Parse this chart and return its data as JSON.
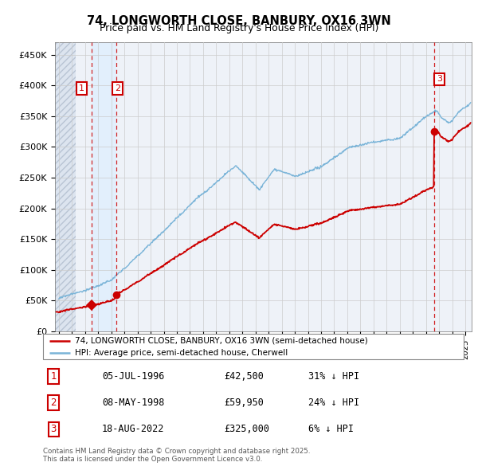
{
  "title": "74, LONGWORTH CLOSE, BANBURY, OX16 3WN",
  "subtitle": "Price paid vs. HM Land Registry's House Price Index (HPI)",
  "ylim": [
    0,
    470000
  ],
  "yticks": [
    0,
    50000,
    100000,
    150000,
    200000,
    250000,
    300000,
    350000,
    400000,
    450000
  ],
  "ytick_labels": [
    "£0",
    "£50K",
    "£100K",
    "£150K",
    "£200K",
    "£250K",
    "£300K",
    "£350K",
    "£400K",
    "£450K"
  ],
  "xlim_start": 1993.7,
  "xlim_end": 2025.5,
  "xticks": [
    1994,
    1995,
    1996,
    1997,
    1998,
    1999,
    2000,
    2001,
    2002,
    2003,
    2004,
    2005,
    2006,
    2007,
    2008,
    2009,
    2010,
    2011,
    2012,
    2013,
    2014,
    2015,
    2016,
    2017,
    2018,
    2019,
    2020,
    2021,
    2022,
    2023,
    2024,
    2025
  ],
  "hpi_color": "#7ab4d8",
  "price_color": "#cc0000",
  "vline_color": "#cc0000",
  "grid_color": "#cccccc",
  "background_plot": "#eef2f8",
  "hatch_color": "#d8dfe8",
  "band_color": "#ddeeff",
  "legend_label_red": "74, LONGWORTH CLOSE, BANBURY, OX16 3WN (semi-detached house)",
  "legend_label_blue": "HPI: Average price, semi-detached house, Cherwell",
  "sale1_x": 1996.51,
  "sale1_y": 42500,
  "sale2_x": 1998.36,
  "sale2_y": 59950,
  "sale3_x": 2022.63,
  "sale3_y": 325000,
  "annotation_box_color": "#cc0000",
  "footer_text": "Contains HM Land Registry data © Crown copyright and database right 2025.\nThis data is licensed under the Open Government Licence v3.0.",
  "table_entries": [
    {
      "num": "1",
      "date": "05-JUL-1996",
      "price": "£42,500",
      "pct": "31% ↓ HPI"
    },
    {
      "num": "2",
      "date": "08-MAY-1998",
      "price": "£59,950",
      "pct": "24% ↓ HPI"
    },
    {
      "num": "3",
      "date": "18-AUG-2022",
      "price": "£325,000",
      "pct": "6% ↓ HPI"
    }
  ]
}
